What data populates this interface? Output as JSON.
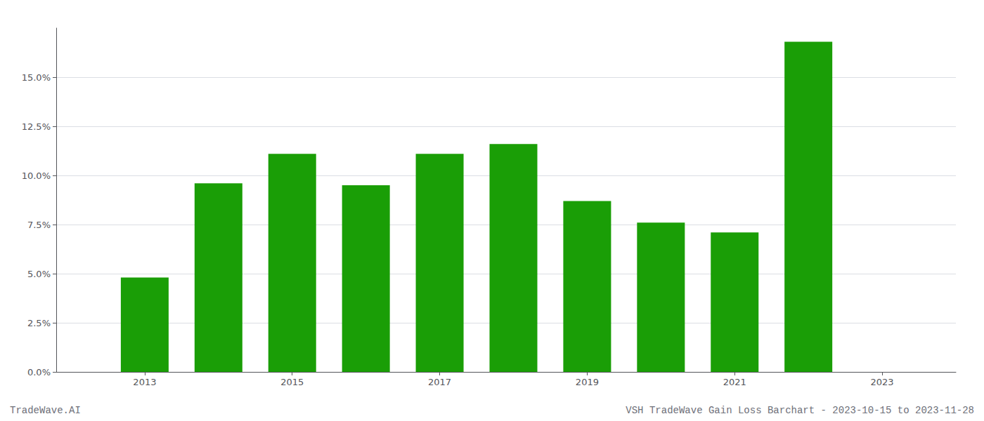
{
  "chart_data": {
    "type": "bar",
    "x": [
      2013,
      2014,
      2015,
      2016,
      2017,
      2018,
      2019,
      2020,
      2021,
      2022
    ],
    "values": [
      0.048,
      0.096,
      0.111,
      0.095,
      0.111,
      0.116,
      0.087,
      0.076,
      0.071,
      0.168
    ],
    "color": "#1a9e06",
    "xlim": [
      2011.8,
      2024.0
    ],
    "xticks": [
      2013,
      2015,
      2017,
      2019,
      2021,
      2023
    ],
    "ylim": [
      0,
      0.175
    ],
    "yticks": [
      {
        "value": 0.0,
        "label": "0.0%"
      },
      {
        "value": 0.025,
        "label": "2.5%"
      },
      {
        "value": 0.05,
        "label": "5.0%"
      },
      {
        "value": 0.075,
        "label": "7.5%"
      },
      {
        "value": 0.1,
        "label": "10.0%"
      },
      {
        "value": 0.125,
        "label": "12.5%"
      },
      {
        "value": 0.15,
        "label": "15.0%"
      }
    ],
    "grid": true,
    "annotations": [
      "TradeWave.AI",
      "VSH TradeWave Gain Loss Barchart - 2023-10-15 to 2023-11-28"
    ]
  }
}
